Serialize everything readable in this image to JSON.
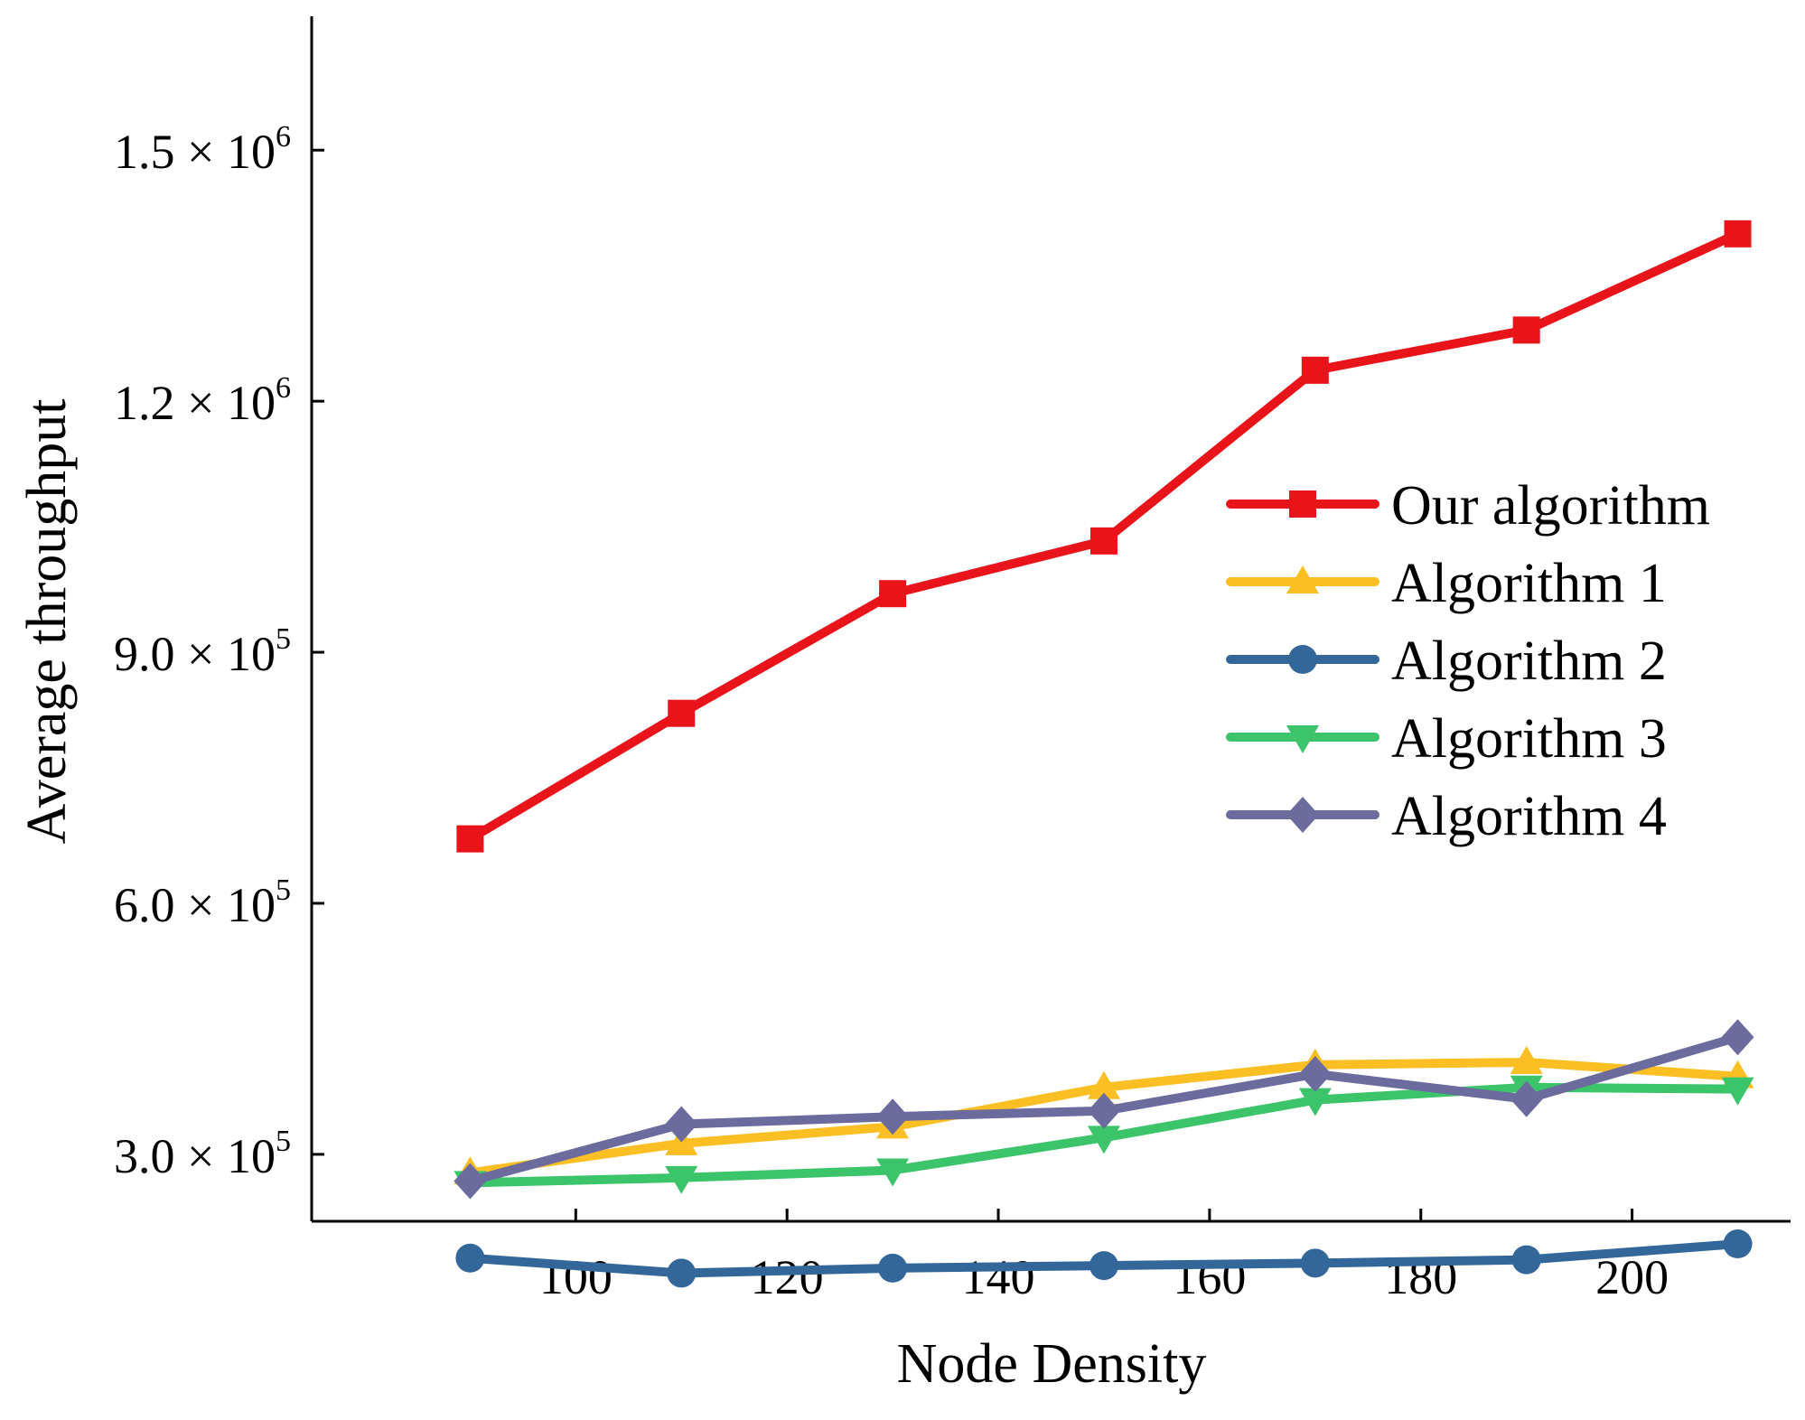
{
  "chart_data": {
    "type": "line",
    "title": "",
    "xlabel": "Node Density",
    "ylabel": "Average throughput",
    "x": [
      90,
      110,
      130,
      150,
      170,
      190,
      210
    ],
    "xlim": [
      75,
      215
    ],
    "ylim": [
      220000,
      1660000
    ],
    "xticks": [
      100,
      120,
      140,
      160,
      180,
      200
    ],
    "yticks": [
      {
        "value": 300000,
        "mantissa": "3.0",
        "exponent": "5"
      },
      {
        "value": 600000,
        "mantissa": "6.0",
        "exponent": "5"
      },
      {
        "value": 900000,
        "mantissa": "9.0",
        "exponent": "5"
      },
      {
        "value": 1200000,
        "mantissa": "1.2",
        "exponent": "6"
      },
      {
        "value": 1500000,
        "mantissa": "1.5",
        "exponent": "6"
      }
    ],
    "times_symbol": "×",
    "base": "10",
    "grid": false,
    "legend_position": "right",
    "series": [
      {
        "name": "Our algorithm",
        "color": "#e8141a",
        "marker": "square",
        "values": [
          677000,
          827000,
          970000,
          1033000,
          1237000,
          1285000,
          1400000
        ]
      },
      {
        "name": "Algorithm 1",
        "color": "#fbbf24",
        "marker": "triangle-up",
        "values": [
          278000,
          313000,
          333000,
          380000,
          407000,
          410000,
          393000
        ]
      },
      {
        "name": "Algorithm 2",
        "color": "#336699",
        "marker": "circle",
        "values": [
          176000,
          158000,
          164000,
          167000,
          170000,
          174000,
          193000
        ]
      },
      {
        "name": "Algorithm 3",
        "color": "#3cc46a",
        "marker": "triangle-down",
        "values": [
          266000,
          272000,
          281000,
          320000,
          365000,
          380000,
          378000
        ]
      },
      {
        "name": "Algorithm 4",
        "color": "#6b6b9e",
        "marker": "diamond",
        "values": [
          268000,
          336000,
          345000,
          352000,
          396000,
          366000,
          440000
        ]
      }
    ]
  }
}
